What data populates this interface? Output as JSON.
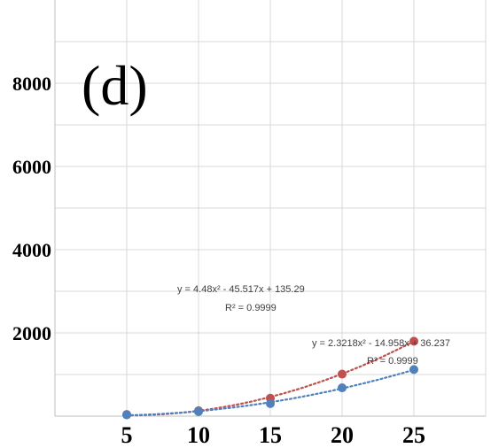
{
  "chart_data": {
    "type": "scatter",
    "panel_label": "(d)",
    "title": "",
    "xlabel": "",
    "ylabel": "",
    "xlim": [
      0,
      30
    ],
    "ylim": [
      0,
      10000
    ],
    "xticks": [
      5,
      10,
      15,
      20,
      25
    ],
    "yticks": [
      2000,
      4000,
      6000,
      8000
    ],
    "grid": true,
    "series": [
      {
        "color": "#c0504d",
        "x": [
          5,
          10,
          15,
          20,
          25
        ],
        "y": [
          40,
          130,
          430,
          1010,
          1800
        ],
        "trendline": {
          "kind": "polynomial-2",
          "coefficients": [
            4.48,
            -45.517,
            135.29
          ],
          "equation": "y = 4.48x² - 45.517x + 135.29",
          "r2": "R² = 0.9999"
        }
      },
      {
        "color": "#4f81bd",
        "x": [
          5,
          10,
          15,
          20,
          25
        ],
        "y": [
          30,
          110,
          300,
          680,
          1120
        ],
        "trendline": {
          "kind": "polynomial-2",
          "coefficients": [
            2.3218,
            -14.958,
            36.237
          ],
          "equation": "y = 2.3218x² - 14.958x + 36.237",
          "r2": "R² = 0.9999"
        }
      }
    ]
  }
}
